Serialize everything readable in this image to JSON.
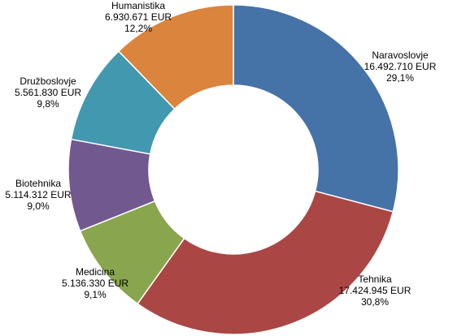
{
  "chart_data": {
    "type": "pie",
    "variant": "donut",
    "title": "",
    "slices": [
      {
        "name": "Naravoslovje",
        "amount": "16.492.710 EUR",
        "percent_label": "29,1%",
        "value": 16492710,
        "percent": 29.1,
        "color": "#4572A7"
      },
      {
        "name": "Tehnika",
        "amount": "17.424.945 EUR",
        "percent_label": "30,8%",
        "value": 17424945,
        "percent": 30.8,
        "color": "#AA4643"
      },
      {
        "name": "Medicina",
        "amount": "5.136.330 EUR",
        "percent_label": "9,1%",
        "value": 5136330,
        "percent": 9.1,
        "color": "#89A54E"
      },
      {
        "name": "Biotehnika",
        "amount": "5.114.312 EUR",
        "percent_label": "9,0%",
        "value": 5114312,
        "percent": 9.0,
        "color": "#71588F"
      },
      {
        "name": "Družboslovje",
        "amount": "5.561.830 EUR",
        "percent_label": "9,8%",
        "value": 5561830,
        "percent": 9.8,
        "color": "#4198AF"
      },
      {
        "name": "Humanistika",
        "amount": "6.930.671 EUR",
        "percent_label": "12,2%",
        "value": 6930671,
        "percent": 12.2,
        "color": "#DB843D"
      }
    ],
    "legend": "none",
    "data_labels": "outside"
  }
}
